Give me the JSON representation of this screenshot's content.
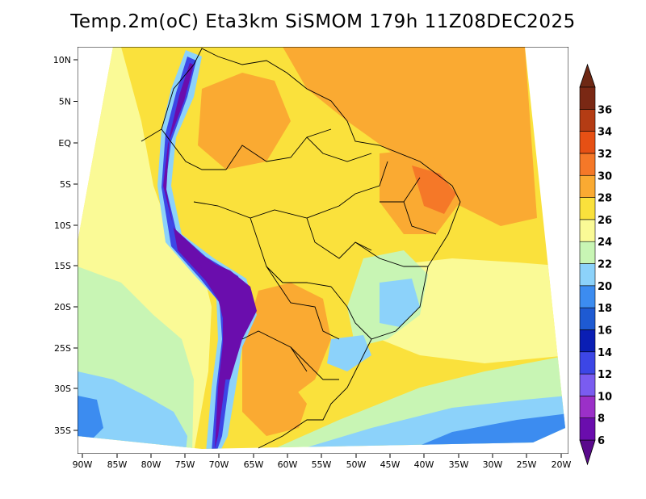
{
  "title": "Temp.2m(oC) Eta3km SiSMOM 179h 11Z08DEC2025",
  "map": {
    "lat_labels": [
      "10N",
      "5N",
      "EQ",
      "5S",
      "10S",
      "15S",
      "20S",
      "25S",
      "30S",
      "35S"
    ],
    "lon_labels": [
      "90W",
      "85W",
      "80W",
      "75W",
      "70W",
      "65W",
      "60W",
      "55W",
      "50W",
      "45W",
      "40W",
      "35W",
      "30W",
      "25W",
      "20W"
    ]
  },
  "colorbar": {
    "levels": [
      "6",
      "8",
      "10",
      "12",
      "14",
      "16",
      "18",
      "20",
      "22",
      "24",
      "26",
      "28",
      "30",
      "32",
      "34",
      "36"
    ],
    "colors": [
      "#6a0dad",
      "#9b30c8",
      "#7a5cf0",
      "#3c46e6",
      "#0a1eb4",
      "#1e5ad2",
      "#3c8cf0",
      "#8cd2fa",
      "#c8f5b4",
      "#fafa96",
      "#fae13c",
      "#faaa32",
      "#f57828",
      "#e65014",
      "#b43c14",
      "#7a2814"
    ],
    "under_color": "#5a0a8c",
    "over_color": "#6e2814"
  }
}
